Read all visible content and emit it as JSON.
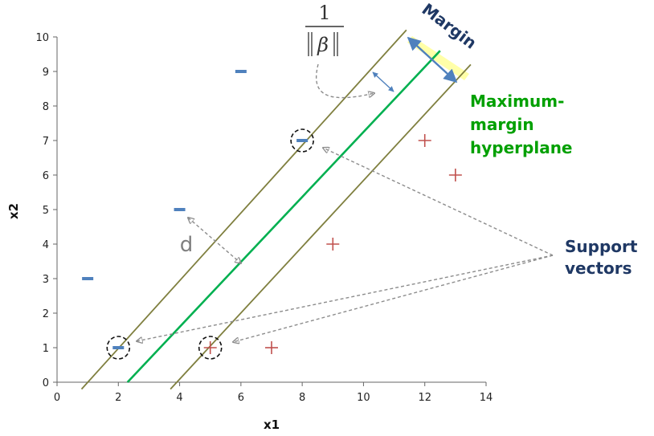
{
  "axes": {
    "xlabel": "x1",
    "ylabel": "x2",
    "xlim": [
      0,
      14
    ],
    "ylim": [
      0,
      10
    ],
    "xticks": [
      "0",
      "2",
      "4",
      "6",
      "8",
      "10",
      "12",
      "14"
    ],
    "yticks": [
      "0",
      "1",
      "2",
      "3",
      "4",
      "5",
      "6",
      "7",
      "8",
      "9",
      "10"
    ]
  },
  "points": {
    "negative": [
      [
        1,
        3
      ],
      [
        2,
        1
      ],
      [
        4,
        5
      ],
      [
        6,
        9
      ],
      [
        8,
        7
      ]
    ],
    "positive": [
      [
        5,
        1
      ],
      [
        7,
        1
      ],
      [
        9,
        4
      ],
      [
        12,
        7
      ],
      [
        13,
        6
      ]
    ],
    "support_vectors": [
      [
        2,
        1
      ],
      [
        5,
        1
      ],
      [
        8,
        7
      ]
    ]
  },
  "lines": {
    "hyperplane": [
      [
        2.3,
        0
      ],
      [
        12.5,
        9.6
      ]
    ],
    "margin_upper": [
      [
        0.8,
        -0.2
      ],
      [
        11.4,
        10.2
      ]
    ],
    "margin_lower": [
      [
        3.7,
        -0.2
      ],
      [
        13.5,
        9.2
      ]
    ]
  },
  "labels": {
    "margin": "Margin",
    "hyperplane_line1": "Maximum-",
    "hyperplane_line2": "margin",
    "hyperplane_line3": "hyperplane",
    "support_line1": "Support",
    "support_line2": "vectors",
    "distance": "d",
    "formula_numerator": "1",
    "formula_denominator": "β"
  },
  "colors": {
    "hyperplane": "#00b050",
    "margin_lines": "#7f7f3f",
    "negative": "#4f81bd",
    "positive": "#c0504d",
    "arrow": "#4f81bd",
    "dashed": "#8c8c8c",
    "margin_band": "#ffff99"
  }
}
